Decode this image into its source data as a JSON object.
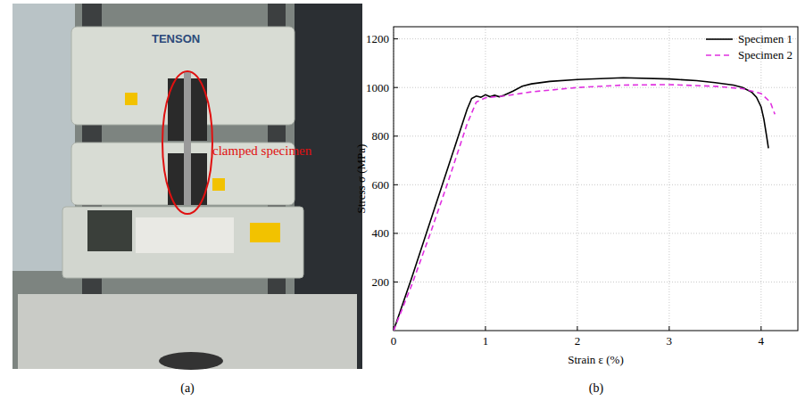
{
  "panel_labels": [
    "(a)",
    "(b)"
  ],
  "photo": {
    "brand": "TENSON",
    "annotation": "clamped specimen"
  },
  "chart_data": {
    "type": "line",
    "x_label": "Strain ε (%)",
    "y_label": "Stress σ (MPa)",
    "xlim": [
      0,
      4.4
    ],
    "xticks": [
      0,
      1,
      2,
      3,
      4
    ],
    "ylim": [
      0,
      1250
    ],
    "yticks": [
      200,
      400,
      600,
      800,
      1000,
      1200
    ],
    "grid": true,
    "legend": "upper right",
    "series": [
      {
        "name": "Specimen 1",
        "color": "#000000",
        "line_style": "solid",
        "x": [
          0,
          0.2,
          0.4,
          0.6,
          0.8,
          0.85,
          0.9,
          0.95,
          1.0,
          1.05,
          1.1,
          1.15,
          1.2,
          1.3,
          1.4,
          1.5,
          1.7,
          2.0,
          2.5,
          3.0,
          3.3,
          3.5,
          3.7,
          3.8,
          3.9,
          3.95,
          4.0,
          4.03,
          4.06,
          4.08
        ],
        "values": [
          0,
          220,
          450,
          680,
          910,
          955,
          965,
          960,
          970,
          962,
          968,
          962,
          968,
          985,
          1005,
          1015,
          1025,
          1033,
          1040,
          1035,
          1028,
          1020,
          1010,
          1000,
          980,
          960,
          920,
          870,
          800,
          750
        ]
      },
      {
        "name": "Specimen 2",
        "color": "#e030e0",
        "line_style": "dashed",
        "x": [
          0,
          0.2,
          0.4,
          0.6,
          0.8,
          0.9,
          1.0,
          1.2,
          1.5,
          2.0,
          2.5,
          3.0,
          3.5,
          3.8,
          4.0,
          4.1,
          4.15
        ],
        "values": [
          0,
          190,
          400,
          620,
          850,
          940,
          958,
          965,
          982,
          1000,
          1010,
          1012,
          1005,
          995,
          975,
          940,
          890
        ]
      }
    ]
  }
}
